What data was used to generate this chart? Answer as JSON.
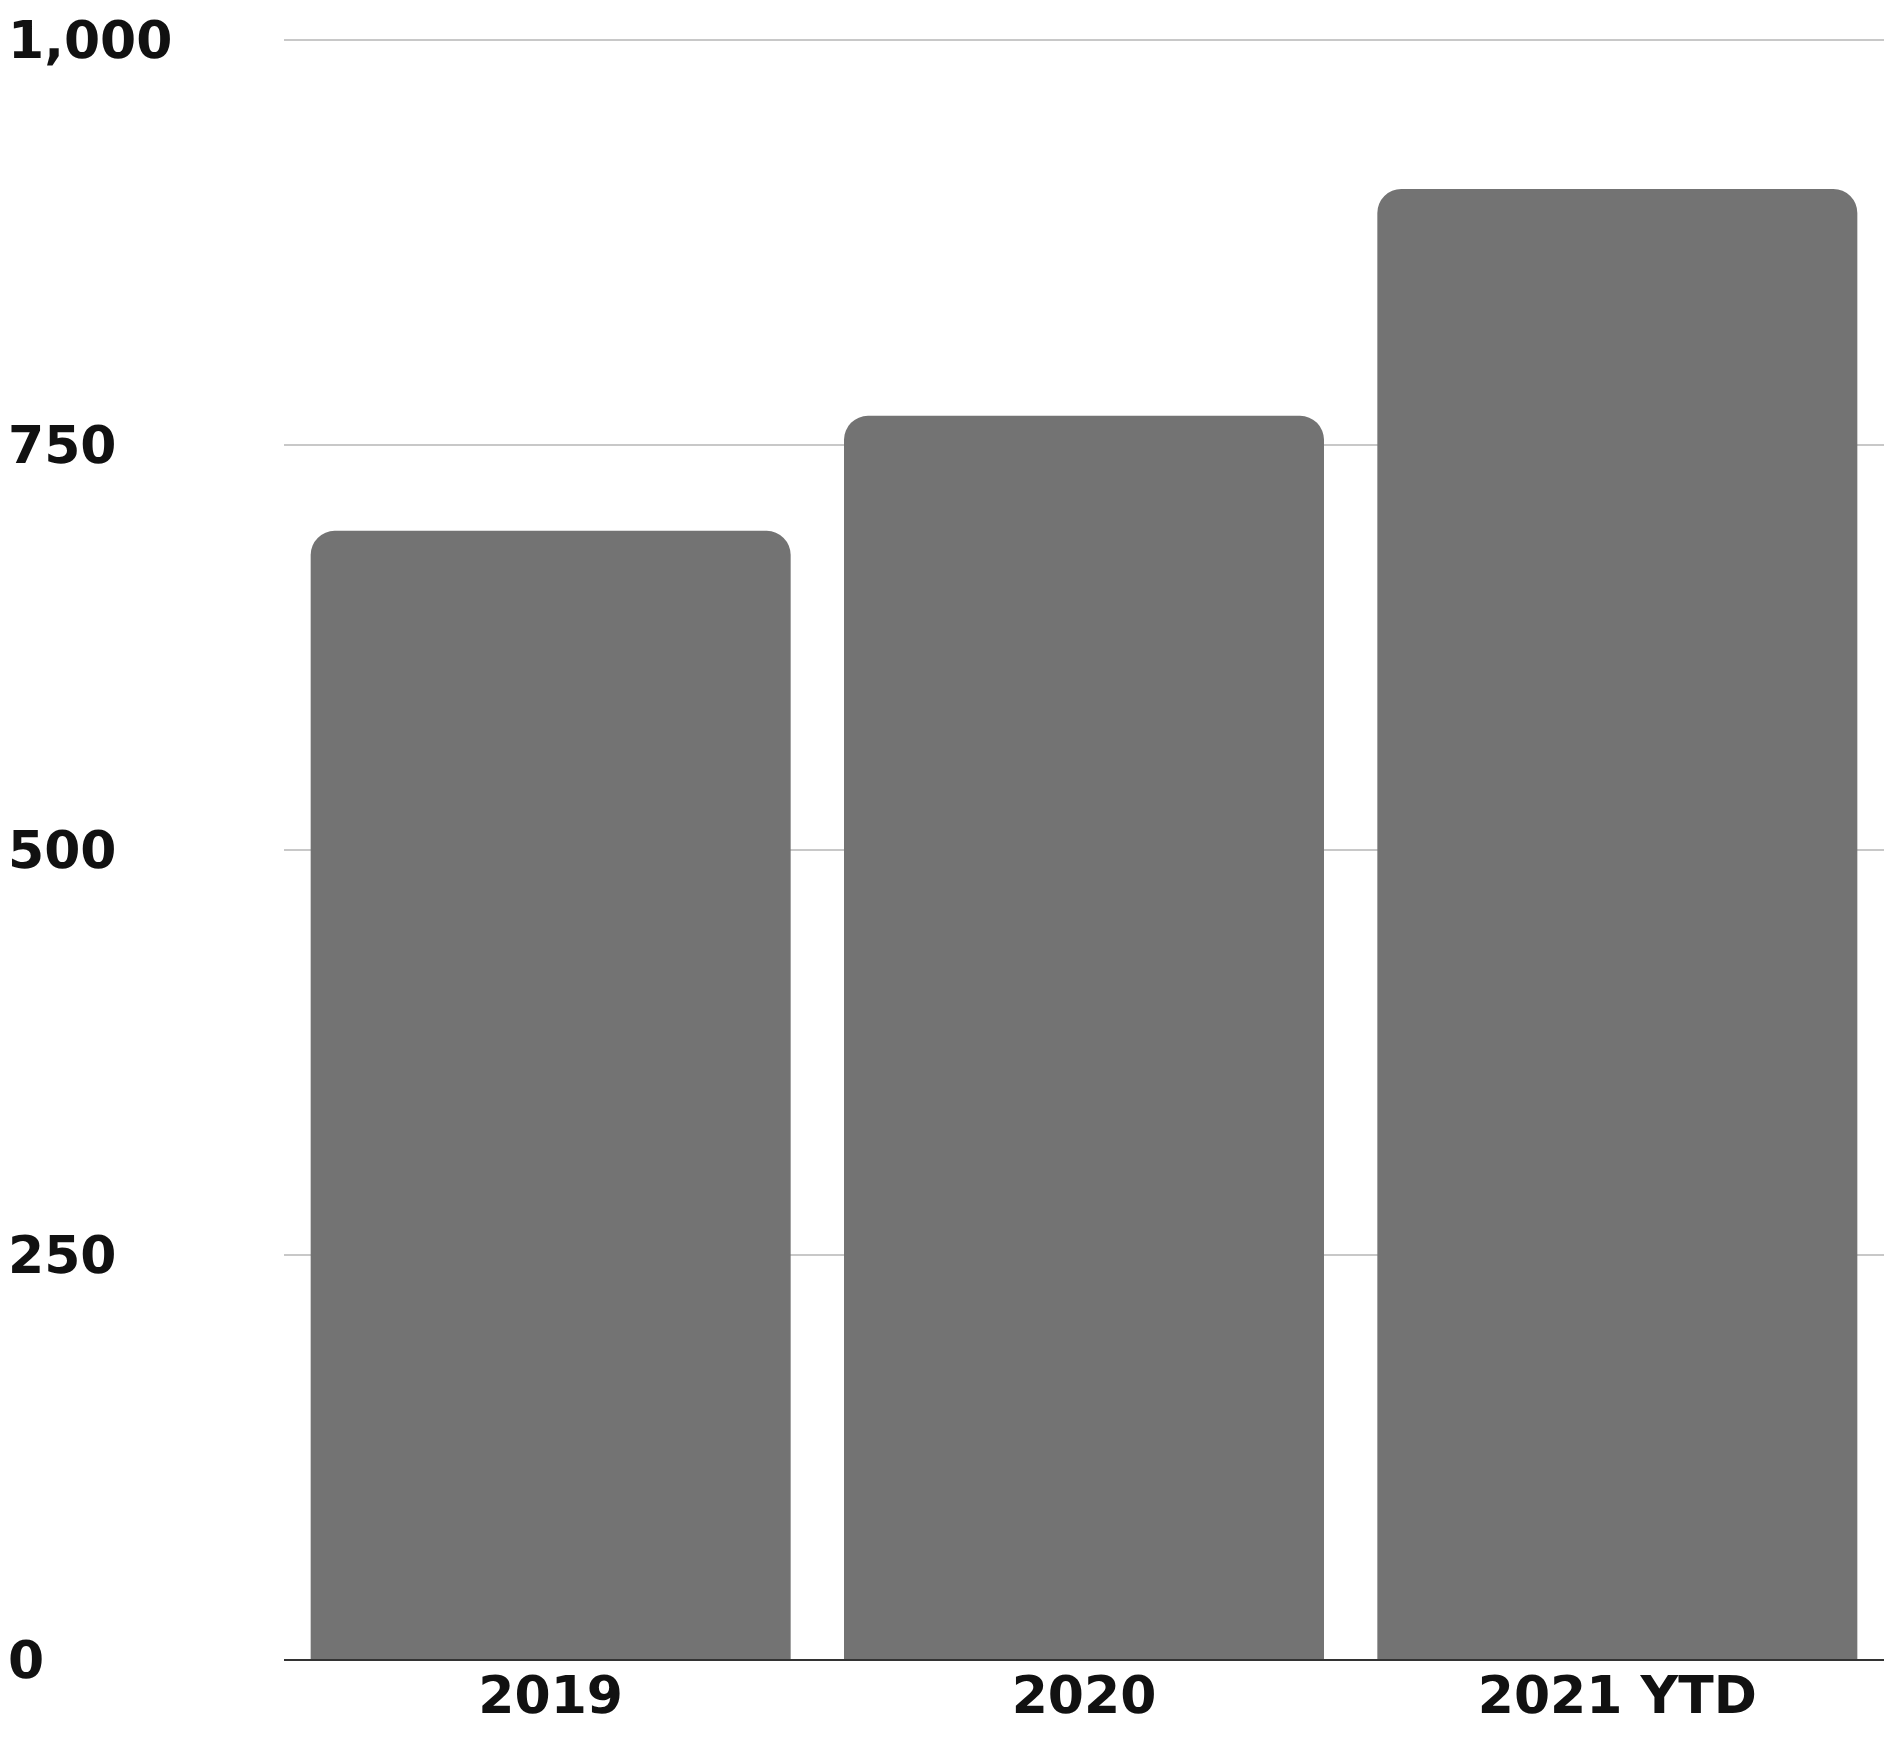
{
  "chart_data": {
    "type": "bar",
    "categories": [
      "2019",
      "2020",
      "2021 YTD"
    ],
    "values": [
      697,
      768,
      908
    ],
    "color": "#737373",
    "ylim": [
      0,
      1000
    ],
    "yticks": [
      {
        "value": 0,
        "label": "0"
      },
      {
        "value": 250,
        "label": "250"
      },
      {
        "value": 500,
        "label": "500"
      },
      {
        "value": 750,
        "label": "750"
      },
      {
        "value": 1000,
        "label": "1,000"
      }
    ],
    "grid": "y",
    "legend": false
  }
}
